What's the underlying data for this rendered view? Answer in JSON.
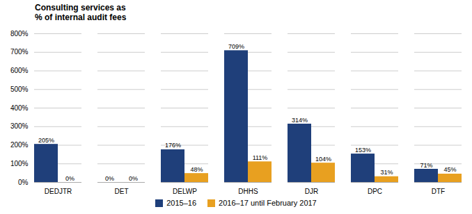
{
  "chart_data": {
    "type": "bar",
    "title": "Consulting services as\n% of internal audit fees",
    "categories": [
      "DEDJTR",
      "DET",
      "DELWP",
      "DHHS",
      "DJR",
      "DPC",
      "DTF"
    ],
    "series": [
      {
        "name": "2015–16",
        "color": "#1F3F7A",
        "values": [
          205,
          0,
          176,
          709,
          314,
          153,
          71
        ],
        "value_labels": [
          "205%",
          "0%",
          "176%",
          "709%",
          "314%",
          "153%",
          "71%"
        ]
      },
      {
        "name": "2016–17 until February 2017",
        "color": "#E8A020",
        "values": [
          0,
          0,
          48,
          111,
          104,
          31,
          45
        ],
        "value_labels": [
          "0%",
          "0%",
          "48%",
          "111%",
          "104%",
          "31%",
          "45%"
        ]
      }
    ],
    "ylim": [
      0,
      800
    ],
    "yticks": [
      {
        "value": 0,
        "label": "0%"
      },
      {
        "value": 100,
        "label": "100%"
      },
      {
        "value": 200,
        "label": "200%"
      },
      {
        "value": 300,
        "label": "300%"
      },
      {
        "value": 400,
        "label": "400%"
      },
      {
        "value": 500,
        "label": "500%"
      },
      {
        "value": 600,
        "label": "600%"
      },
      {
        "value": 700,
        "label": "700%"
      },
      {
        "value": 800,
        "label": "800%"
      }
    ],
    "grid": true,
    "data_labels": true,
    "legend": "bottom"
  }
}
